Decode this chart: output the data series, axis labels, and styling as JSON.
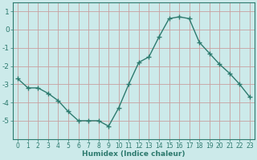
{
  "x": [
    0,
    1,
    2,
    3,
    4,
    5,
    6,
    7,
    8,
    9,
    10,
    11,
    12,
    13,
    14,
    15,
    16,
    17,
    18,
    19,
    20,
    21,
    22,
    23
  ],
  "y": [
    -2.7,
    -3.2,
    -3.2,
    -3.5,
    -3.9,
    -4.5,
    -5.0,
    -5.0,
    -5.0,
    -5.3,
    -4.3,
    -3.0,
    -1.8,
    -1.5,
    -0.4,
    0.6,
    0.7,
    0.6,
    -0.7,
    -1.3,
    -1.9,
    -2.4,
    -3.0,
    -3.7
  ],
  "xlabel": "Humidex (Indice chaleur)",
  "ylim": [
    -6.0,
    1.5
  ],
  "xlim": [
    -0.5,
    23.5
  ],
  "yticks": [
    1,
    0,
    -1,
    -2,
    -3,
    -4,
    -5
  ],
  "xticks": [
    0,
    1,
    2,
    3,
    4,
    5,
    6,
    7,
    8,
    9,
    10,
    11,
    12,
    13,
    14,
    15,
    16,
    17,
    18,
    19,
    20,
    21,
    22,
    23
  ],
  "line_color": "#2d7a6e",
  "bg_color": "#cceaea",
  "grid_color_major": "#c8a0a0",
  "grid_color_minor": "#b8d8d8",
  "marker": "+",
  "markersize": 4,
  "linewidth": 1.0,
  "xlabel_fontsize": 6.5,
  "ytick_fontsize": 6.5,
  "xtick_fontsize": 5.5
}
